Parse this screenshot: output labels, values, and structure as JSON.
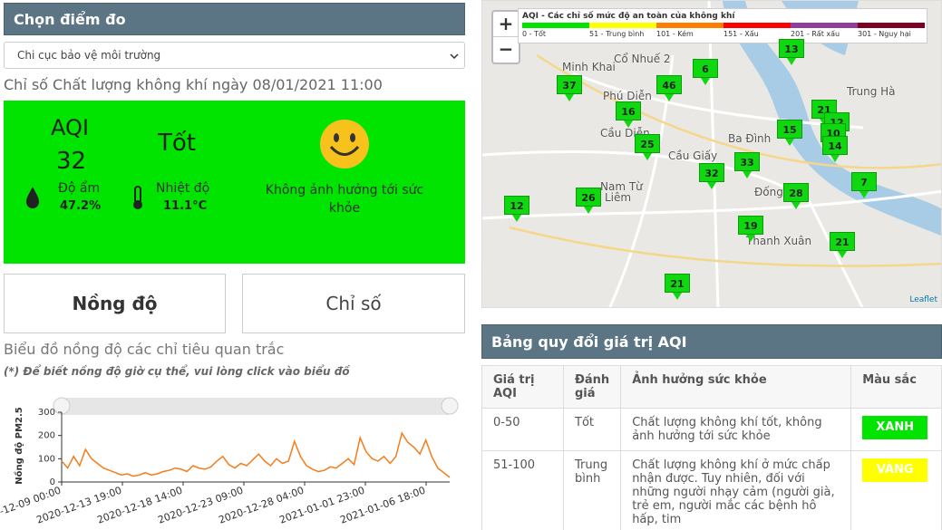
{
  "left": {
    "header": "Chọn điểm đo",
    "station": "Chi cục bảo vệ môi trường",
    "title": "Chỉ số Chất lượng không khí ngày 08/01/2021 11:00",
    "aqi_label": "AQI",
    "aqi_value": "32",
    "rating": "Tốt",
    "humidity_label": "Độ ẩm",
    "humidity": "47.2%",
    "temperature_label": "Nhiệt độ",
    "temperature": "11.1°C",
    "impact": "Không ảnh hưởng tới sức khỏe",
    "tab_concentration": "Nồng độ",
    "tab_index": "Chỉ số",
    "chart_heading": "Biểu đồ nồng độ các chỉ tiêu quan trắc",
    "chart_note": "(*) Để biết nồng độ giờ cụ thể, vui lòng click vào biểu đồ"
  },
  "chart_data": {
    "type": "line",
    "y_label": "Nồng độ PM2.5",
    "x_labels": [
      "-12-09 00:00",
      "2020-12-13 19:00",
      "2020-12-18 14:00",
      "2020-12-23 09:00",
      "2020-12-28 04:00",
      "2021-01-01 23:00",
      "2021-01-06 18:00"
    ],
    "color": "#f57c1a",
    "ylim": [
      0,
      300
    ],
    "yticks": [
      0,
      100,
      200,
      300
    ],
    "values": [
      90,
      60,
      110,
      70,
      140,
      100,
      80,
      60,
      50,
      40,
      30,
      35,
      25,
      30,
      40,
      30,
      35,
      45,
      50,
      60,
      55,
      45,
      70,
      60,
      55,
      65,
      90,
      110,
      75,
      60,
      80,
      70,
      95,
      120,
      90,
      70,
      100,
      80,
      90,
      175,
      110,
      70,
      55,
      45,
      50,
      65,
      60,
      80,
      100,
      75,
      190,
      130,
      100,
      90,
      110,
      80,
      110,
      210,
      170,
      150,
      120,
      180,
      110,
      60,
      40,
      20
    ]
  },
  "map": {
    "zoom_in": "+",
    "zoom_out": "−",
    "legend_title": "AQI - Các chỉ số mức độ an toàn của không khí",
    "legend": [
      {
        "label": "0 - Tốt",
        "color": "#00e400"
      },
      {
        "label": "51 - Trung bình",
        "color": "#ffff00"
      },
      {
        "label": "101 - Kém",
        "color": "#ff7e00"
      },
      {
        "label": "151 - Xấu",
        "color": "#ff0000"
      },
      {
        "label": "201 - Rất xấu",
        "color": "#8f3f97"
      },
      {
        "label": "301 - Nguy hại",
        "color": "#7e0023"
      }
    ],
    "markers": [
      13,
      37,
      46,
      6,
      16,
      21,
      12,
      10,
      14,
      15,
      25,
      32,
      33,
      7,
      12,
      26,
      28,
      19,
      21,
      21
    ],
    "places": [
      "Minh Khai",
      "Cổ Nhuế 2",
      "Phú Diễn",
      "Cầu Diễn",
      "Ba Đình",
      "Cầu Giấy",
      "Nam Từ",
      "Liêm",
      "Đống",
      "Thanh Xuân",
      "Trung Hà"
    ],
    "attribution": "Leaflet"
  },
  "table": {
    "title": "Bảng quy đổi giá trị AQI",
    "columns": [
      "Giá trị AQI",
      "Đánh giá",
      "Ảnh hưởng sức khỏe",
      "Màu sắc"
    ],
    "rows": [
      [
        "0-50",
        "Tốt",
        "Chất lượng không khí tốt, không ảnh hưởng tới sức khỏe",
        "XANH"
      ],
      [
        "51-100",
        "Trung bình",
        "Chất lượng không khí ở mức chấp nhận được. Tuy nhiên, đối với những người nhạy cảm (người già, trẻ em, người mắc các bệnh hô hấp, tim",
        "VÀNG"
      ]
    ],
    "chip_colors": [
      "#00e400",
      "#ffff00"
    ]
  }
}
